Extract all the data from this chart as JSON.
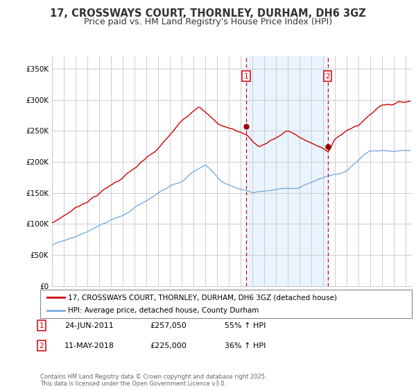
{
  "title": "17, CROSSWAYS COURT, THORNLEY, DURHAM, DH6 3GZ",
  "subtitle": "Price paid vs. HM Land Registry's House Price Index (HPI)",
  "ylabel_ticks": [
    "£0",
    "£50K",
    "£100K",
    "£150K",
    "£200K",
    "£250K",
    "£300K",
    "£350K"
  ],
  "ytick_values": [
    0,
    50000,
    100000,
    150000,
    200000,
    250000,
    300000,
    350000
  ],
  "ylim": [
    0,
    370000
  ],
  "xlim_start": 1995.0,
  "xlim_end": 2025.5,
  "legend_line1": "17, CROSSWAYS COURT, THORNLEY, DURHAM, DH6 3GZ (detached house)",
  "legend_line2": "HPI: Average price, detached house, County Durham",
  "sale1_label": "1",
  "sale1_date": "24-JUN-2011",
  "sale1_price": "£257,050",
  "sale1_hpi": "55% ↑ HPI",
  "sale1_year": 2011.47,
  "sale1_value": 257050,
  "sale2_label": "2",
  "sale2_date": "11-MAY-2018",
  "sale2_price": "£225,000",
  "sale2_hpi": "36% ↑ HPI",
  "sale2_year": 2018.36,
  "sale2_value": 225000,
  "footer": "Contains HM Land Registry data © Crown copyright and database right 2025.\nThis data is licensed under the Open Government Licence v3.0.",
  "color_red": "#cc0000",
  "color_blue": "#7aaadd",
  "color_bg_shaded": "#ddeeff",
  "color_grid": "#cccccc",
  "color_title": "#333333",
  "title_fontsize": 10.5,
  "subtitle_fontsize": 9
}
